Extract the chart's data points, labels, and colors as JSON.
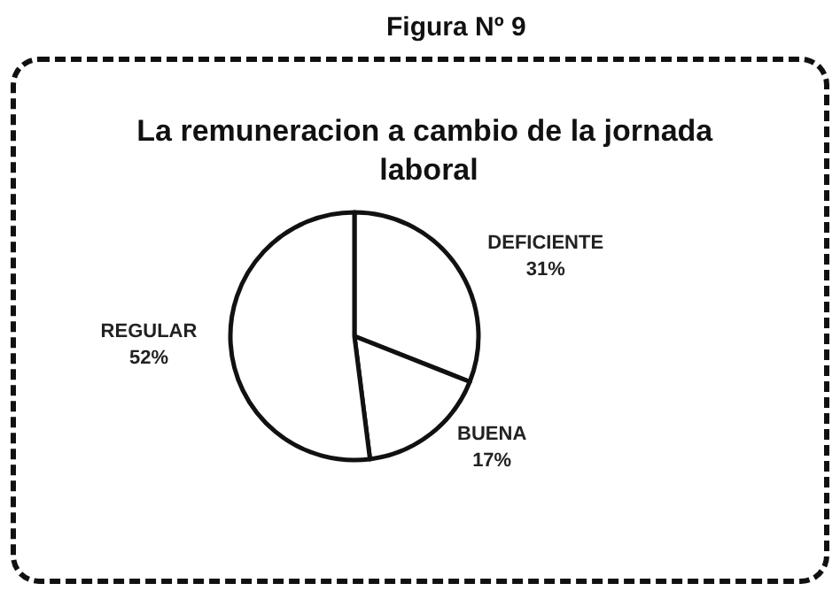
{
  "chart_data": {
    "type": "pie",
    "title": "La remuneracion a cambio de la jornada laboral",
    "annotations": [
      "Figura Nº 9"
    ],
    "categories": [
      "DEFICIENTE",
      "BUENA",
      "REGULAR"
    ],
    "values": [
      31,
      17,
      52
    ],
    "value_labels": [
      "31%",
      "17%",
      "52%"
    ],
    "colors": [
      "#ffffff",
      "#ffffff",
      "#ffffff"
    ]
  }
}
